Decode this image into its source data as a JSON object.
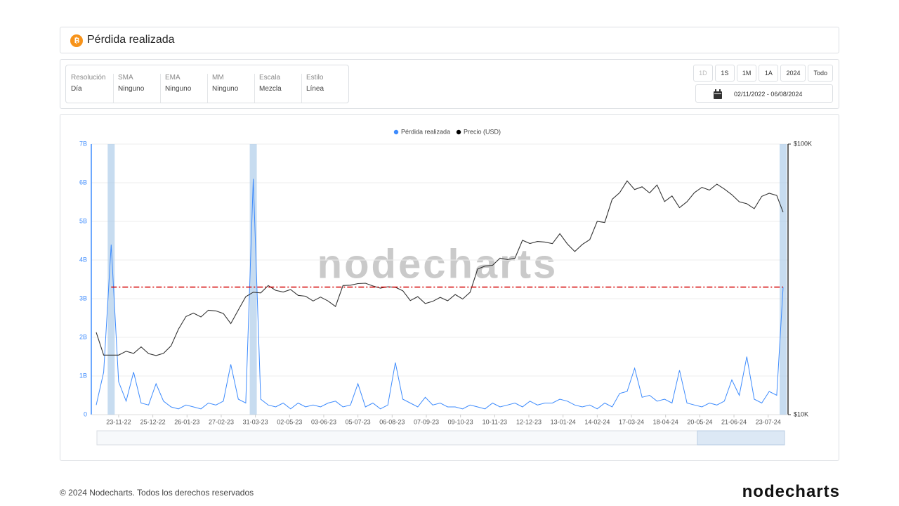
{
  "header": {
    "title": "Pérdida realizada"
  },
  "controls": {
    "settings": [
      {
        "label": "Resolución",
        "value": "Día"
      },
      {
        "label": "SMA",
        "value": "Ninguno"
      },
      {
        "label": "EMA",
        "value": "Ninguno"
      },
      {
        "label": "MM",
        "value": "Ninguno"
      },
      {
        "label": "Escala",
        "value": "Mezcla"
      },
      {
        "label": "Estilo",
        "value": "Línea"
      }
    ],
    "ranges": [
      "1D",
      "1S",
      "1M",
      "1A",
      "2024",
      "Todo"
    ],
    "date_range": "02/11/2022 - 06/08/2024"
  },
  "chart_data": {
    "type": "line",
    "watermark": "nodecharts",
    "legend": "top",
    "grid": true,
    "y2log": true,
    "reference_line": {
      "value": 3.3,
      "color": "#d40000"
    },
    "highlight_color": "#a9c9e8",
    "xlim": [
      "2022-11-02",
      "2024-08-06"
    ],
    "xticks": [
      {
        "value": "2022-11-23",
        "label": "23-11-22"
      },
      {
        "value": "2022-12-25",
        "label": "25-12-22"
      },
      {
        "value": "2023-01-26",
        "label": "26-01-23"
      },
      {
        "value": "2023-02-27",
        "label": "27-02-23"
      },
      {
        "value": "2023-03-31",
        "label": "31-03-23"
      },
      {
        "value": "2023-05-02",
        "label": "02-05-23"
      },
      {
        "value": "2023-06-03",
        "label": "03-06-23"
      },
      {
        "value": "2023-07-05",
        "label": "05-07-23"
      },
      {
        "value": "2023-08-06",
        "label": "06-08-23"
      },
      {
        "value": "2023-09-07",
        "label": "07-09-23"
      },
      {
        "value": "2023-10-09",
        "label": "09-10-23"
      },
      {
        "value": "2023-11-10",
        "label": "10-11-23"
      },
      {
        "value": "2023-12-12",
        "label": "12-12-23"
      },
      {
        "value": "2024-01-13",
        "label": "13-01-24"
      },
      {
        "value": "2024-02-14",
        "label": "14-02-24"
      },
      {
        "value": "2024-03-17",
        "label": "17-03-24"
      },
      {
        "value": "2024-04-18",
        "label": "18-04-24"
      },
      {
        "value": "2024-05-20",
        "label": "20-05-24"
      },
      {
        "value": "2024-06-21",
        "label": "21-06-24"
      },
      {
        "value": "2024-07-23",
        "label": "23-07-24"
      }
    ],
    "ylim": [
      0,
      7
    ],
    "yticks": [
      0,
      {
        "value": 1,
        "label": "1B"
      },
      {
        "value": 2,
        "label": "2B"
      },
      {
        "value": 3,
        "label": "3B"
      },
      {
        "value": 4,
        "label": "4B"
      },
      {
        "value": 5,
        "label": "5B"
      },
      {
        "value": 6,
        "label": "6B"
      },
      {
        "value": 7,
        "label": "7B"
      }
    ],
    "y2lim": [
      10000,
      100000
    ],
    "y2ticks": [
      {
        "value": 10000,
        "label": "$10K"
      },
      {
        "value": 100000,
        "label": "$100K"
      }
    ],
    "x": [
      "2022-11-02",
      "2022-11-09",
      "2022-11-16",
      "2022-11-23",
      "2022-11-30",
      "2022-12-07",
      "2022-12-14",
      "2022-12-21",
      "2022-12-28",
      "2023-01-04",
      "2023-01-11",
      "2023-01-18",
      "2023-01-25",
      "2023-02-01",
      "2023-02-08",
      "2023-02-15",
      "2023-02-22",
      "2023-03-01",
      "2023-03-08",
      "2023-03-15",
      "2023-03-22",
      "2023-03-29",
      "2023-04-05",
      "2023-04-12",
      "2023-04-19",
      "2023-04-26",
      "2023-05-03",
      "2023-05-10",
      "2023-05-17",
      "2023-05-24",
      "2023-05-31",
      "2023-06-07",
      "2023-06-14",
      "2023-06-21",
      "2023-06-28",
      "2023-07-05",
      "2023-07-12",
      "2023-07-19",
      "2023-07-26",
      "2023-08-02",
      "2023-08-09",
      "2023-08-16",
      "2023-08-23",
      "2023-08-30",
      "2023-09-06",
      "2023-09-13",
      "2023-09-20",
      "2023-09-27",
      "2023-10-04",
      "2023-10-11",
      "2023-10-18",
      "2023-10-25",
      "2023-11-01",
      "2023-11-08",
      "2023-11-15",
      "2023-11-22",
      "2023-11-29",
      "2023-12-06",
      "2023-12-13",
      "2023-12-20",
      "2023-12-27",
      "2024-01-03",
      "2024-01-10",
      "2024-01-17",
      "2024-01-24",
      "2024-01-31",
      "2024-02-07",
      "2024-02-14",
      "2024-02-21",
      "2024-02-28",
      "2024-03-06",
      "2024-03-13",
      "2024-03-20",
      "2024-03-27",
      "2024-04-03",
      "2024-04-10",
      "2024-04-17",
      "2024-04-24",
      "2024-05-01",
      "2024-05-08",
      "2024-05-15",
      "2024-05-22",
      "2024-05-29",
      "2024-06-05",
      "2024-06-12",
      "2024-06-19",
      "2024-06-26",
      "2024-07-03",
      "2024-07-10",
      "2024-07-17",
      "2024-07-24",
      "2024-07-31",
      "2024-08-06"
    ],
    "series": [
      {
        "name": "Pérdida realizada",
        "color": "#3d8bfd",
        "values": [
          0.25,
          1.1,
          4.4,
          0.85,
          0.35,
          1.1,
          0.3,
          0.25,
          0.8,
          0.35,
          0.2,
          0.15,
          0.25,
          0.2,
          0.15,
          0.3,
          0.25,
          0.35,
          1.3,
          0.4,
          0.3,
          6.1,
          0.4,
          0.25,
          0.2,
          0.3,
          0.15,
          0.3,
          0.2,
          0.25,
          0.2,
          0.3,
          0.35,
          0.2,
          0.25,
          0.8,
          0.2,
          0.3,
          0.15,
          0.25,
          1.35,
          0.4,
          0.3,
          0.2,
          0.45,
          0.25,
          0.3,
          0.2,
          0.2,
          0.15,
          0.25,
          0.2,
          0.15,
          0.3,
          0.2,
          0.25,
          0.3,
          0.2,
          0.35,
          0.25,
          0.3,
          0.3,
          0.4,
          0.35,
          0.25,
          0.2,
          0.25,
          0.15,
          0.3,
          0.2,
          0.55,
          0.6,
          1.2,
          0.45,
          0.5,
          0.35,
          0.4,
          0.3,
          1.15,
          0.3,
          0.25,
          0.2,
          0.3,
          0.25,
          0.35,
          0.9,
          0.5,
          1.5,
          0.4,
          0.3,
          0.6,
          0.5,
          3.3
        ]
      },
      {
        "name": "Precio (USD)",
        "color": "#333333",
        "axis": "y2",
        "values": [
          20150,
          16600,
          16600,
          16600,
          17150,
          16840,
          17800,
          16820,
          16540,
          16850,
          17950,
          20700,
          23050,
          23730,
          22960,
          24320,
          24180,
          23640,
          21700,
          24370,
          27300,
          28350,
          28170,
          30000,
          28800,
          28400,
          29000,
          27600,
          27400,
          26300,
          27200,
          26300,
          25100,
          30000,
          30100,
          30500,
          30600,
          29900,
          29350,
          29700,
          29560,
          28700,
          26400,
          27300,
          25750,
          26230,
          27130,
          26350,
          27790,
          26750,
          28330,
          34500,
          35400,
          35650,
          37880,
          37420,
          37860,
          44100,
          42890,
          43650,
          43440,
          42840,
          46630,
          42740,
          40080,
          42580,
          44330,
          51800,
          51300,
          62500,
          66100,
          73100,
          67900,
          69500,
          66000,
          70600,
          61300,
          64300,
          58250,
          61200,
          66200,
          69200,
          67600,
          71100,
          68250,
          65000,
          61200,
          60200,
          57700,
          64100,
          65800,
          64600,
          56000
        ]
      }
    ]
  },
  "footer": {
    "copyright": "© 2024 Nodecharts. Todos los derechos reservados",
    "logo": "nodecharts"
  }
}
